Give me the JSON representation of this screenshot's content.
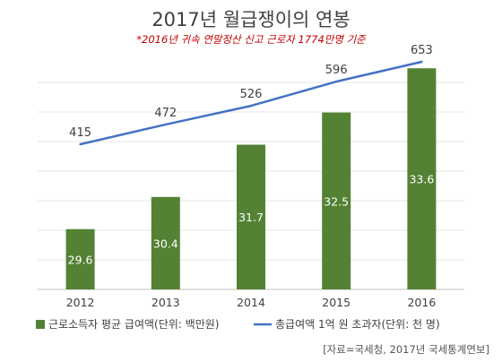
{
  "header": {
    "title": "2017년 월급쟁이의 연봉",
    "subtitle": "*2016년 귀속 연말정산 신고 근로자 1774만명 기준"
  },
  "source": "[자료=국세청, 2017년 국세통계연보]",
  "chart_data": {
    "type": "bar",
    "categories": [
      "2012",
      "2013",
      "2014",
      "2015",
      "2016"
    ],
    "series": [
      {
        "name": "근로소득자 평균 급여액(단위: 백만원)",
        "type": "bar",
        "color": "#548235",
        "values": [
          29.6,
          30.4,
          31.7,
          32.5,
          33.6
        ],
        "labels": [
          "29.6",
          "30.4",
          "31.7",
          "32.5",
          "33.6"
        ]
      },
      {
        "name": "총급여액 1억 원 초과자(단위: 천 명)",
        "type": "line",
        "color": "#4472c4",
        "values": [
          415,
          472,
          526,
          596,
          653
        ],
        "labels": [
          "415",
          "472",
          "526",
          "596",
          "653"
        ]
      }
    ],
    "title": "2017년 월급쟁이의 연봉",
    "legend_position": "bottom",
    "grid": true
  }
}
